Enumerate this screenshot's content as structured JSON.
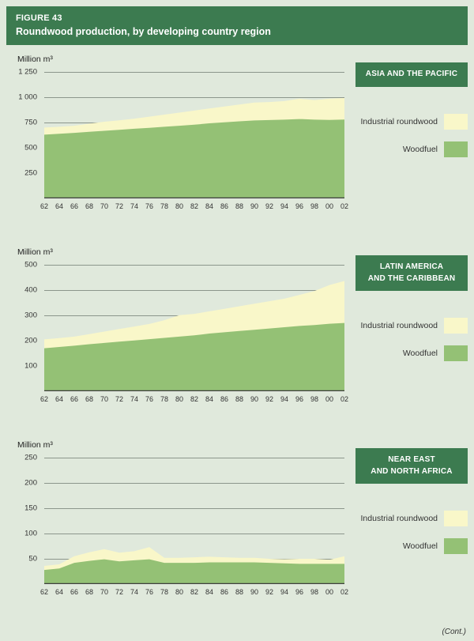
{
  "figure": {
    "label": "FIGURE 43",
    "title": "Roundwood production, by developing country region",
    "cont_note": "(Cont.)"
  },
  "legend": {
    "industrial": "Industrial roundwood",
    "woodfuel": "Woodfuel"
  },
  "palette": {
    "header_green": "#3c7b50",
    "badge_green": "#3c7b50",
    "page_bg": "#e0e9dc",
    "industrial_fill": "#f9f7c9",
    "woodfuel_fill": "#94c175",
    "gridline": "#8c968c",
    "baseline": "#3f3f3f",
    "text": "#333333"
  },
  "chart_data": [
    {
      "type": "area",
      "stacked": true,
      "stacking_note": "Woodfuel at bottom, Industrial roundwood stacked on top",
      "title": "ASIA AND THE PACIFIC",
      "region_lines": [
        "ASIA AND THE PACIFIC"
      ],
      "unit": "Million m³",
      "ylabel": "Million m³",
      "y_max": 1250,
      "y_ticks": [
        "1 250",
        "1 000",
        "750",
        "500",
        "250"
      ],
      "grid": true,
      "legend_position": "right",
      "x": [
        "62",
        "64",
        "66",
        "68",
        "70",
        "72",
        "74",
        "76",
        "78",
        "80",
        "82",
        "84",
        "86",
        "88",
        "90",
        "92",
        "94",
        "96",
        "98",
        "00",
        "02"
      ],
      "series": [
        {
          "name": "Woodfuel",
          "values": [
            630,
            638,
            648,
            658,
            668,
            678,
            688,
            698,
            708,
            718,
            728,
            742,
            752,
            762,
            770,
            774,
            778,
            784,
            778,
            776,
            780
          ]
        },
        {
          "name": "Industrial roundwood",
          "values": [
            70,
            70,
            70,
            80,
            90,
            94,
            100,
            110,
            120,
            130,
            140,
            146,
            156,
            166,
            178,
            178,
            184,
            201,
            194,
            209,
            212
          ]
        }
      ]
    },
    {
      "type": "area",
      "stacked": true,
      "stacking_note": "Woodfuel at bottom, Industrial roundwood stacked on top",
      "title": "LATIN AMERICA AND THE CARIBBEAN",
      "region_lines": [
        "LATIN AMERICA",
        "AND THE CARIBBEAN"
      ],
      "unit": "Million m³",
      "ylabel": "Million m³",
      "y_max": 500,
      "y_ticks": [
        "500",
        "400",
        "300",
        "200",
        "100"
      ],
      "grid": true,
      "legend_position": "right",
      "x": [
        "62",
        "64",
        "66",
        "68",
        "70",
        "72",
        "74",
        "76",
        "78",
        "80",
        "82",
        "84",
        "86",
        "88",
        "90",
        "92",
        "94",
        "96",
        "98",
        "00",
        "02"
      ],
      "series": [
        {
          "name": "Woodfuel",
          "values": [
            170,
            175,
            180,
            186,
            191,
            196,
            201,
            206,
            211,
            216,
            221,
            228,
            233,
            238,
            243,
            248,
            253,
            258,
            262,
            267,
            270
          ]
        },
        {
          "name": "Industrial roundwood",
          "values": [
            35,
            35,
            36,
            40,
            45,
            50,
            55,
            60,
            70,
            85,
            85,
            88,
            93,
            98,
            103,
            108,
            113,
            123,
            134,
            153,
            166
          ]
        }
      ]
    },
    {
      "type": "area",
      "stacked": true,
      "stacking_note": "Woodfuel at bottom, Industrial roundwood stacked on top",
      "title": "NEAR EAST AND NORTH AFRICA",
      "region_lines": [
        "NEAR EAST",
        "AND NORTH AFRICA"
      ],
      "unit": "Million m³",
      "ylabel": "Million m³",
      "y_max": 250,
      "y_ticks": [
        "250",
        "200",
        "150",
        "100",
        "50"
      ],
      "grid": true,
      "legend_position": "right",
      "x": [
        "62",
        "64",
        "66",
        "68",
        "70",
        "72",
        "74",
        "76",
        "78",
        "80",
        "82",
        "84",
        "86",
        "88",
        "90",
        "92",
        "94",
        "96",
        "98",
        "00",
        "02"
      ],
      "series": [
        {
          "name": "Woodfuel",
          "values": [
            28,
            31,
            42,
            46,
            49,
            45,
            47,
            49,
            42,
            42,
            42,
            43,
            43,
            43,
            43,
            42,
            41,
            40,
            40,
            40,
            40
          ]
        },
        {
          "name": "Industrial roundwood",
          "values": [
            8,
            8,
            13,
            17,
            20,
            17,
            18,
            24,
            10,
            10,
            11,
            11,
            10,
            9,
            9,
            8,
            8,
            10,
            10,
            8,
            15
          ]
        }
      ]
    }
  ]
}
